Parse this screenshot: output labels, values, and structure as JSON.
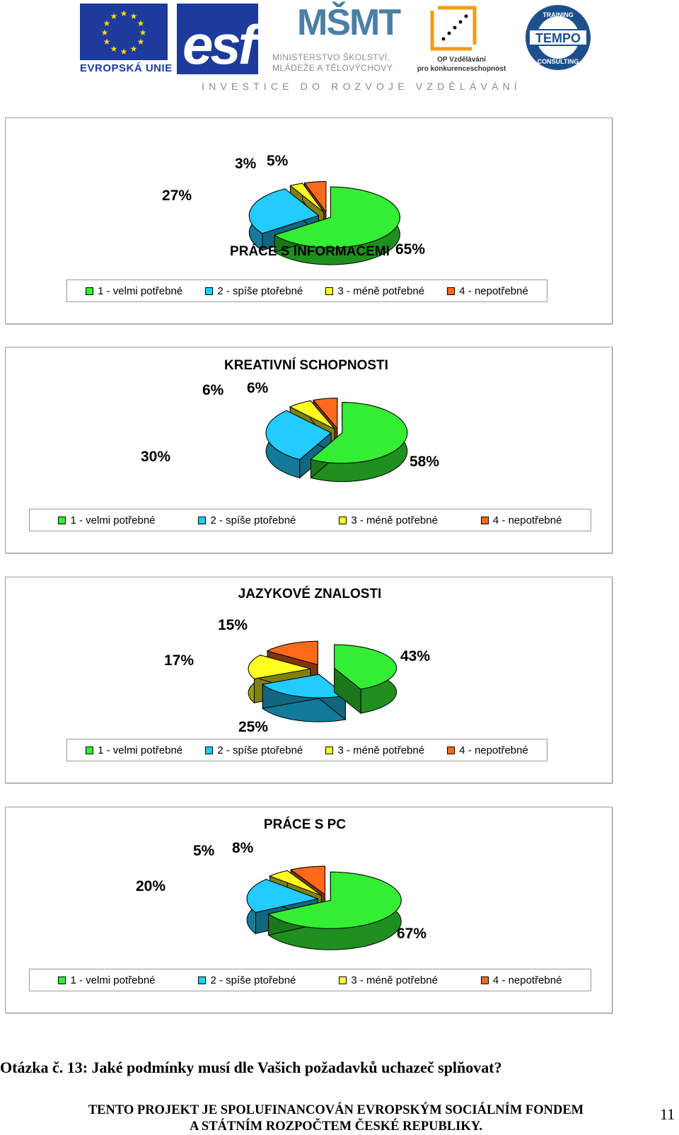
{
  "header": {
    "eu_label": "EVROPSKÁ UNIE",
    "esf_label": "esf",
    "msmt_logo": "MŠMT",
    "msmt_line1": "MINISTERSTVO ŠKOLSTVÍ,",
    "msmt_line2": "MLÁDEŽE A TĚLOVÝCHOVY",
    "op_line1": "OP Vzdělávání",
    "op_line2": "pro konkurenceschopnost",
    "tempo_label": "TEMPO",
    "tempo_ring_top": "TRAINING",
    "tempo_ring_bottom": "CONSULTING",
    "tagline": "INVESTICE DO ROZVOJE VZDĚLÁVÁNÍ"
  },
  "colors": {
    "cat1": "#33ee33",
    "cat2": "#22ccff",
    "cat3": "#ffff22",
    "cat4": "#ff6a1a",
    "eu_blue": "#1d3a9c"
  },
  "chart_data": [
    {
      "type": "pie",
      "title": "PRÁCE S INFORMACEMI",
      "categories": [
        "1 - velmi potřebné",
        "2 - spíše ptořebné",
        "3 - méně potřebné",
        "4 - nepotřebné"
      ],
      "values": [
        65,
        27,
        3,
        5
      ],
      "labels": [
        "65%",
        "27%",
        "3%",
        "5%"
      ],
      "legend_position": "bottom"
    },
    {
      "type": "pie",
      "title": "KREATIVNÍ SCHOPNOSTI",
      "categories": [
        "1 - velmi potřebné",
        "2 - spíše ptořebné",
        "3 - méně potřebné",
        "4 - nepotřebné"
      ],
      "values": [
        58,
        30,
        6,
        6
      ],
      "labels": [
        "58%",
        "30%",
        "6%",
        "6%"
      ],
      "legend_position": "bottom"
    },
    {
      "type": "pie",
      "title": "JAZYKOVÉ ZNALOSTI",
      "categories": [
        "1 - velmi potřebné",
        "2 - spíše ptořebné",
        "3 - méně potřebné",
        "4 - nepotřebné"
      ],
      "values": [
        43,
        25,
        17,
        15
      ],
      "labels": [
        "43%",
        "25%",
        "17%",
        "15%"
      ],
      "legend_position": "bottom"
    },
    {
      "type": "pie",
      "title": "PRÁCE S PC",
      "categories": [
        "1 - velmi potřebné",
        "2 - spíše ptořebné",
        "3 - méně potřebné",
        "4 - nepotřebné"
      ],
      "values": [
        67,
        20,
        5,
        8
      ],
      "labels": [
        "67%",
        "20%",
        "5%",
        "8%"
      ],
      "legend_position": "bottom"
    }
  ],
  "question": "Otázka č. 13: Jaké podmínky musí dle Vašich požadavků uchazeč splňovat?",
  "footer": {
    "line1": "TENTO PROJEKT JE SPOLUFINANCOVÁN EVROPSKÝM SOCIÁLNÍM FONDEM",
    "line2": "A STÁTNÍM ROZPOČTEM ČESKÉ REPUBLIKY."
  },
  "page_number": "11"
}
